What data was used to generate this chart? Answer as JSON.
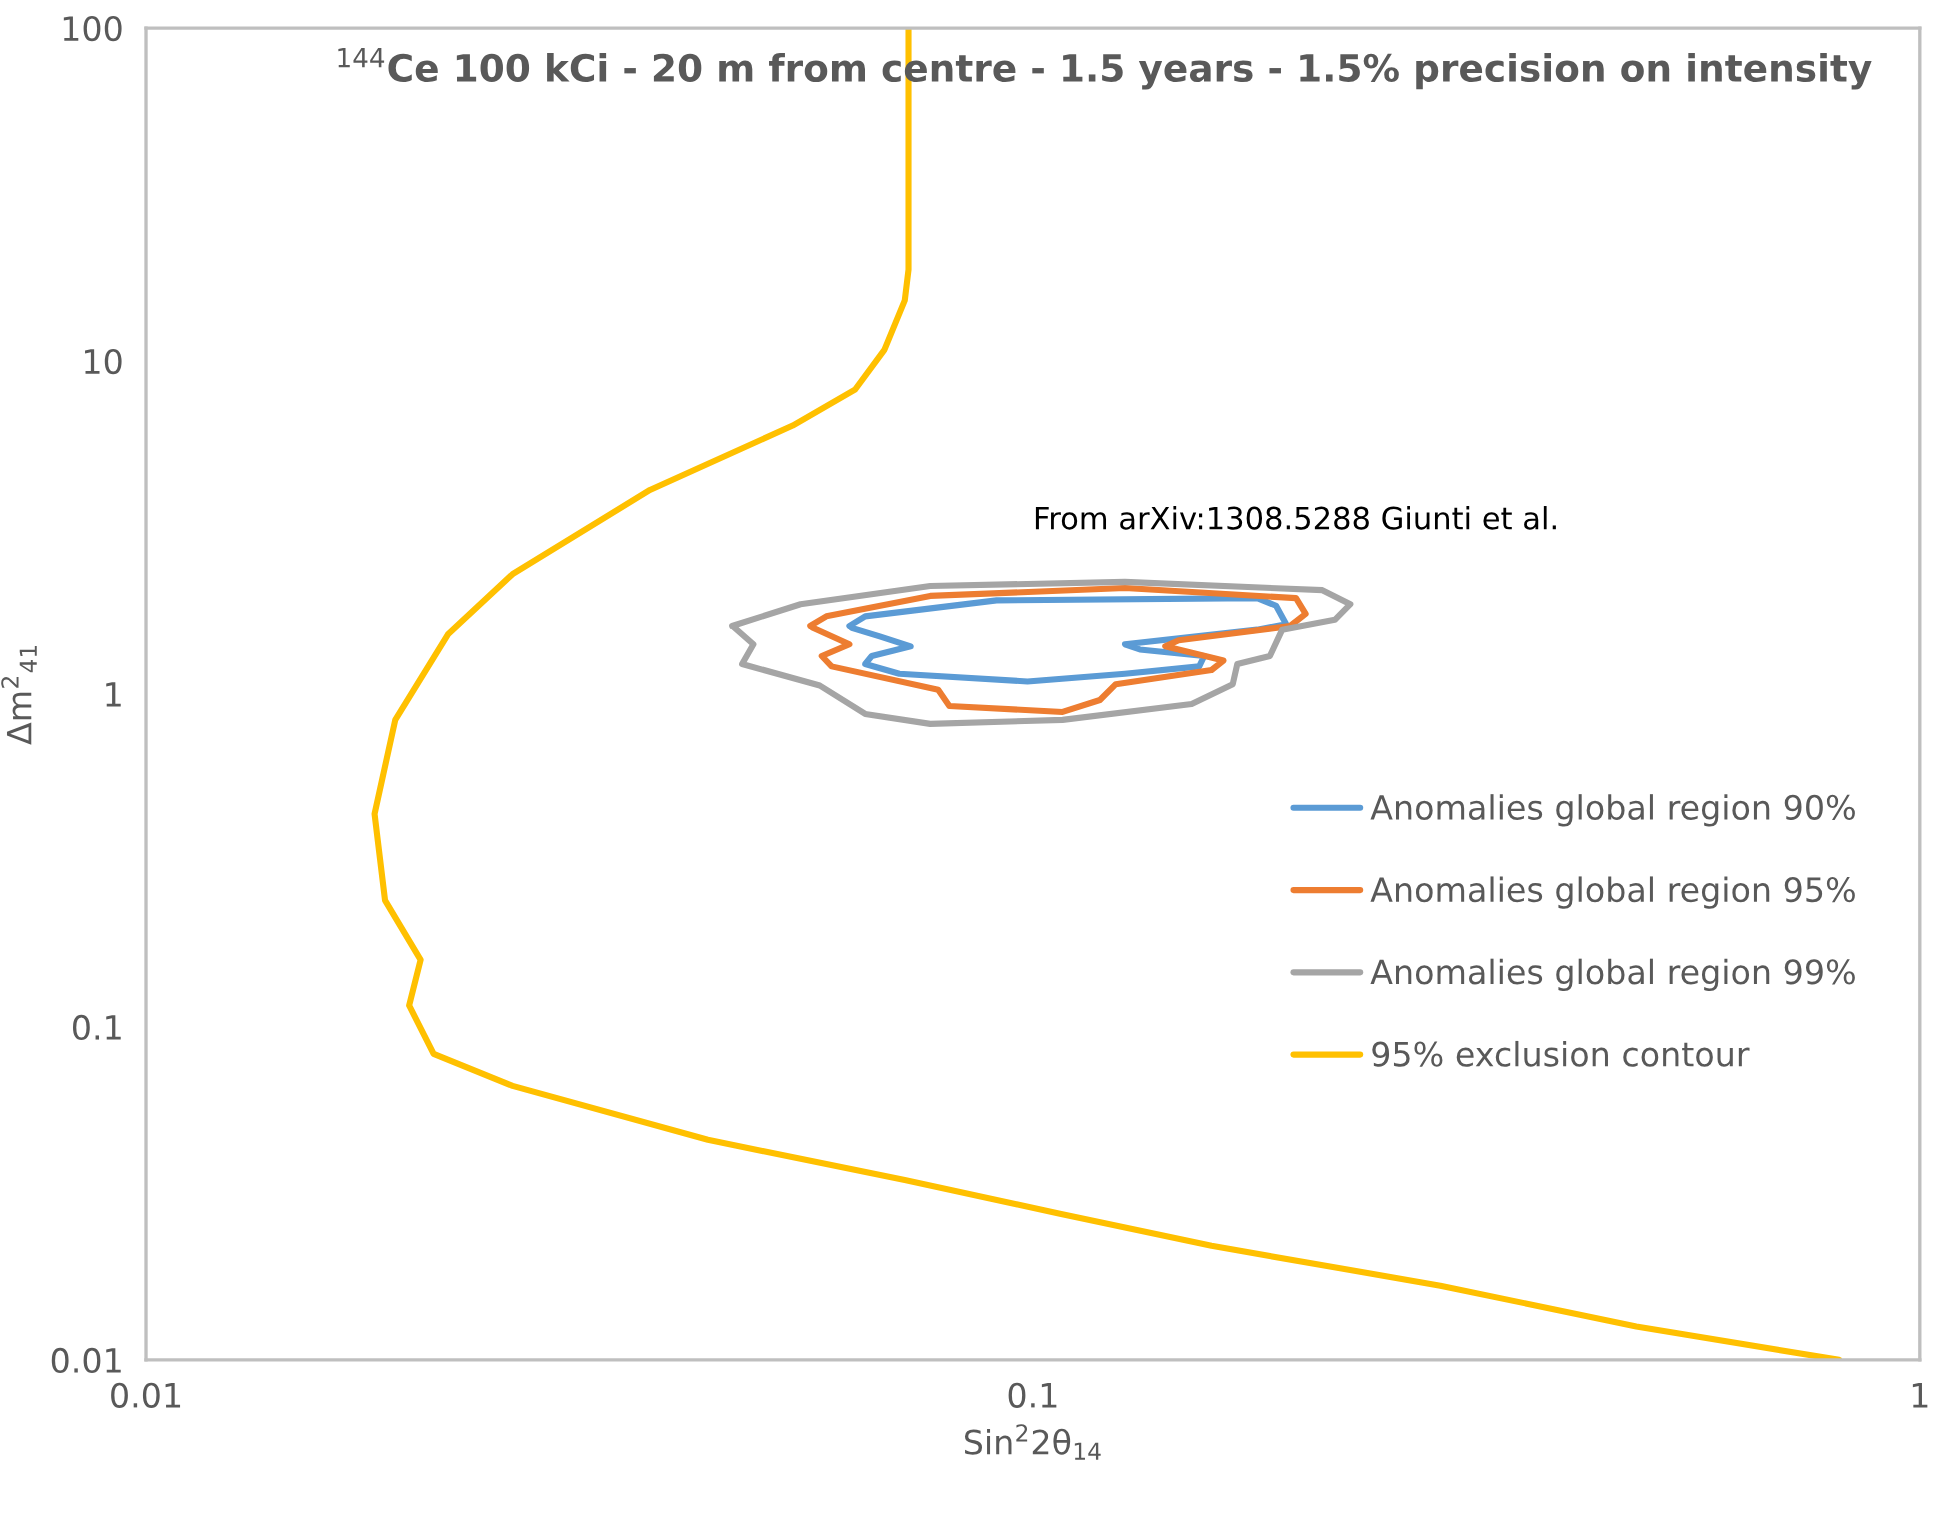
{
  "chart_data": {
    "type": "line",
    "title": "$^{144}$Ce 100 kCi - 20 m from centre - 1.5 years - 1.5% precision on intensity",
    "xlabel": "Sin$^{2}$2θ$_{14}$",
    "ylabel": "Δm$^{2}$$_{41}$",
    "annotations": [
      "From arXiv:1308.5288 Giunti et al."
    ],
    "log": "xy",
    "xlim": [
      0.01,
      1
    ],
    "ylim": [
      0.01,
      100
    ],
    "xticks": [
      0.01,
      0.1,
      1
    ],
    "yticks": [
      0.01,
      0.1,
      1,
      10,
      100
    ],
    "grid": false,
    "legend": "right",
    "marker": "none",
    "line_style": "solid",
    "series": [
      {
        "name": "Anomalies global region 90%",
        "color": "#5b9bd5",
        "x": [
          0.0621,
          0.0647,
          0.091,
          0.179,
          0.188,
          0.193,
          0.179,
          0.127,
          0.132,
          0.156,
          0.154,
          0.127,
          0.0986,
          0.0707,
          0.0647,
          0.0658,
          0.0728,
          0.0672,
          0.0625
        ],
        "values": [
          1.6,
          1.71,
          1.91,
          1.94,
          1.84,
          1.62,
          1.56,
          1.41,
          1.36,
          1.3,
          1.21,
          1.15,
          1.09,
          1.15,
          1.23,
          1.3,
          1.39,
          1.49,
          1.58
        ]
      },
      {
        "name": "Anomalies global region 95%",
        "color": "#ed7d31",
        "x": [
          0.0561,
          0.0585,
          0.0766,
          0.127,
          0.198,
          0.203,
          0.195,
          0.146,
          0.141,
          0.164,
          0.159,
          0.124,
          0.119,
          0.108,
          0.0805,
          0.0782,
          0.0593,
          0.0578,
          0.0621,
          0.0565
        ],
        "values": [
          1.6,
          1.71,
          1.97,
          2.08,
          1.94,
          1.74,
          1.6,
          1.45,
          1.39,
          1.26,
          1.18,
          1.07,
          0.959,
          0.883,
          0.92,
          1.03,
          1.21,
          1.3,
          1.41,
          1.58
        ]
      },
      {
        "name": "Anomalies global region 99%",
        "color": "#a5a5a5",
        "x": [
          0.0458,
          0.0547,
          0.0766,
          0.127,
          0.212,
          0.228,
          0.219,
          0.191,
          0.185,
          0.17,
          0.168,
          0.151,
          0.108,
          0.0766,
          0.0647,
          0.0575,
          0.047,
          0.0484,
          0.0461
        ],
        "values": [
          1.6,
          1.86,
          2.11,
          2.17,
          2.05,
          1.86,
          1.67,
          1.56,
          1.3,
          1.23,
          1.07,
          0.933,
          0.836,
          0.813,
          0.871,
          1.06,
          1.23,
          1.41,
          1.58
        ]
      },
      {
        "name": "95% exclusion contour",
        "color": "#ffc000",
        "x": [
          0.0724,
          0.0724,
          0.0717,
          0.068,
          0.063,
          0.0536,
          0.037,
          0.0259,
          0.0219,
          0.0191,
          0.0181,
          0.0186,
          0.0204,
          0.0198,
          0.0211,
          0.0259,
          0.043,
          0.0717,
          0.1076,
          0.159,
          0.288,
          0.479,
          0.811
        ],
        "values": [
          100,
          18.8,
          15.2,
          10.8,
          8.2,
          6.4,
          4.1,
          2.29,
          1.51,
          0.836,
          0.436,
          0.24,
          0.159,
          0.116,
          0.083,
          0.0665,
          0.0458,
          0.0347,
          0.0274,
          0.022,
          0.0167,
          0.0126,
          0.01
        ]
      }
    ]
  }
}
